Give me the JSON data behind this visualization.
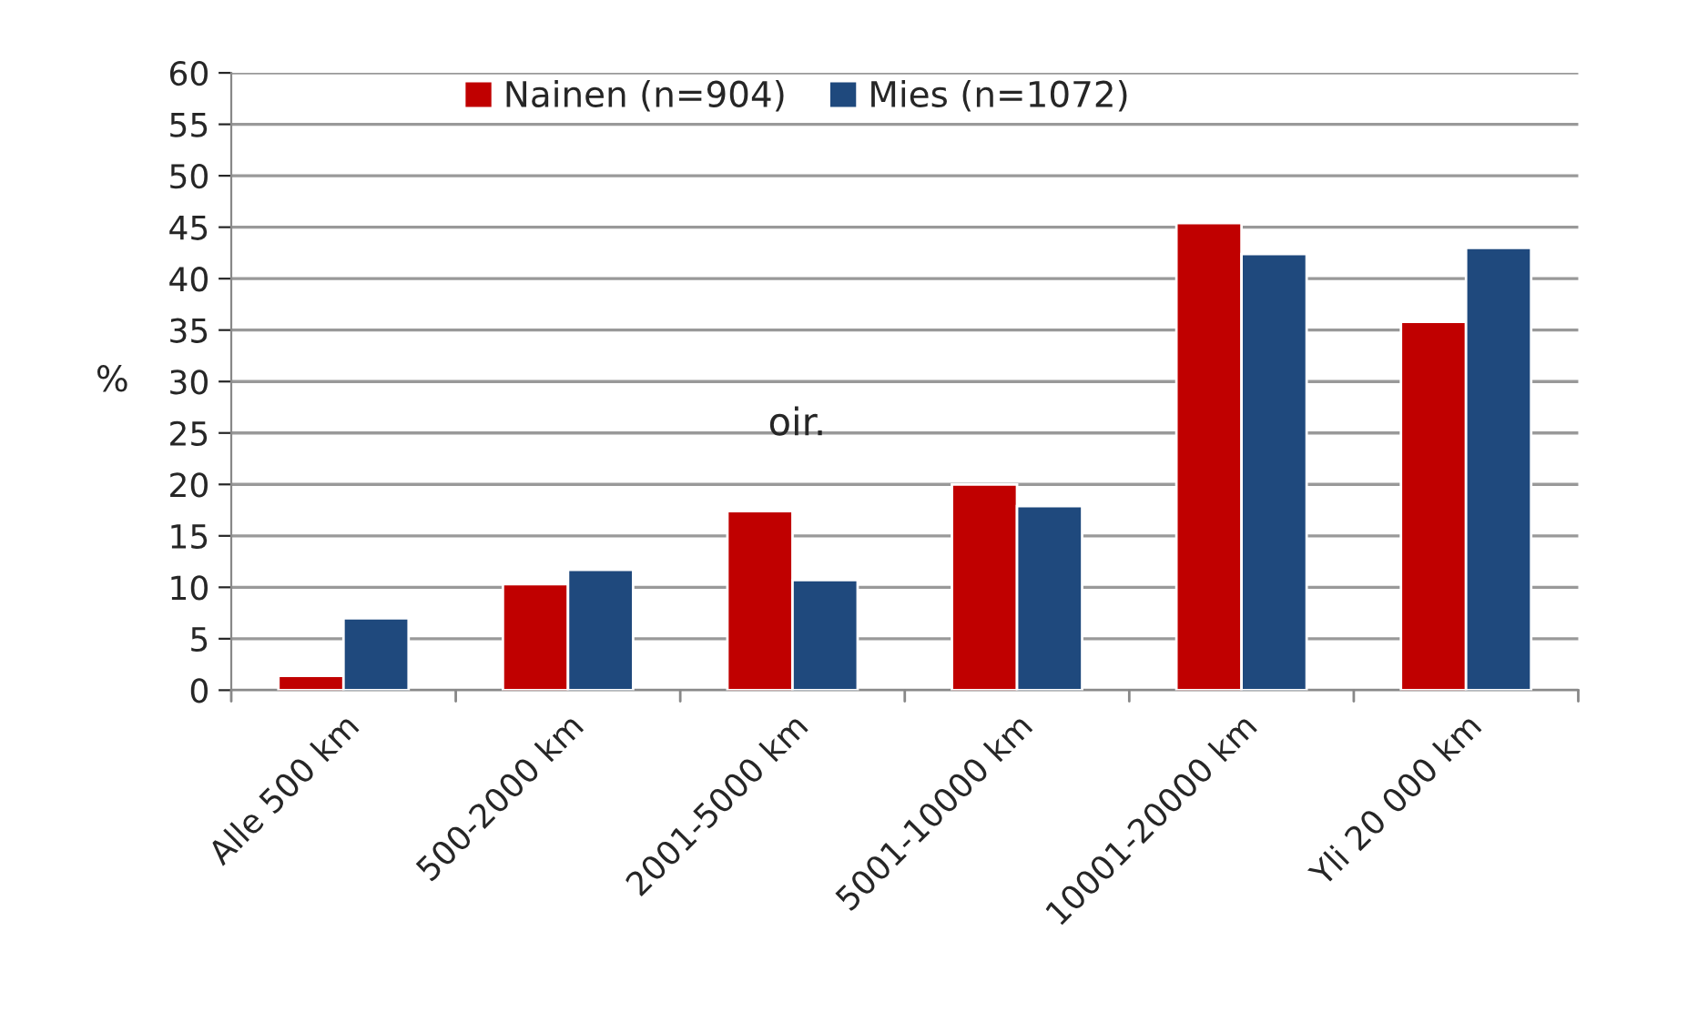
{
  "chart_data": {
    "type": "bar",
    "ylabel": "%",
    "categories": [
      "Alle 500 km",
      "500-2000 km",
      "2001-5000 km",
      "5001-10000 km",
      "10001-20000 km",
      "Yli 20 000 km"
    ],
    "series": [
      {
        "name": "Nainen (n=904)",
        "color": "#c00000",
        "values": [
          1.4,
          10.3,
          17.4,
          20.0,
          45.4,
          35.8
        ]
      },
      {
        "name": "Mies (n=1072)",
        "color": "#1f497d",
        "values": [
          7.0,
          11.7,
          10.7,
          17.9,
          42.4,
          43.0
        ]
      }
    ],
    "ylim": [
      0,
      60
    ],
    "yticks": [
      0,
      5,
      10,
      15,
      20,
      25,
      30,
      35,
      40,
      45,
      50,
      55,
      60
    ],
    "annotations": [
      "oir."
    ],
    "grid": "y",
    "legend": "top"
  }
}
